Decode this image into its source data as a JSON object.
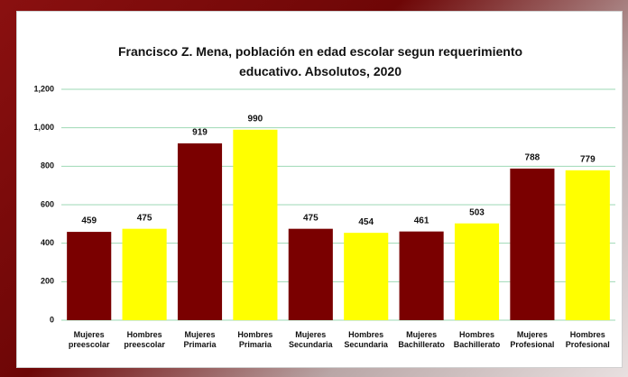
{
  "chart_data": {
    "type": "bar",
    "title": "Francisco Z. Mena, población en edad escolar segun requerimiento educativo. Absolutos, 2020",
    "categories": [
      "Mujeres preescolar",
      "Hombres preescolar",
      "Mujeres Primaria",
      "Hombres Primaria",
      "Mujeres Secundaria",
      "Hombres Secundaria",
      "Mujeres Bachillerato",
      "Hombres Bachillerato",
      "Mujeres Profesional",
      "Hombres Profesional"
    ],
    "values": [
      459,
      475,
      919,
      990,
      475,
      454,
      461,
      503,
      788,
      779
    ],
    "colors": [
      "#7a0000",
      "#ffff00",
      "#7a0000",
      "#ffff00",
      "#7a0000",
      "#ffff00",
      "#7a0000",
      "#ffff00",
      "#7a0000",
      "#ffff00"
    ],
    "ylim": [
      0,
      1200
    ],
    "yticks": [
      0,
      200,
      400,
      600,
      800,
      {
        "value": 1000,
        "label": "1,000"
      },
      {
        "value": 1200,
        "label": "1,200"
      }
    ],
    "grid": true
  }
}
